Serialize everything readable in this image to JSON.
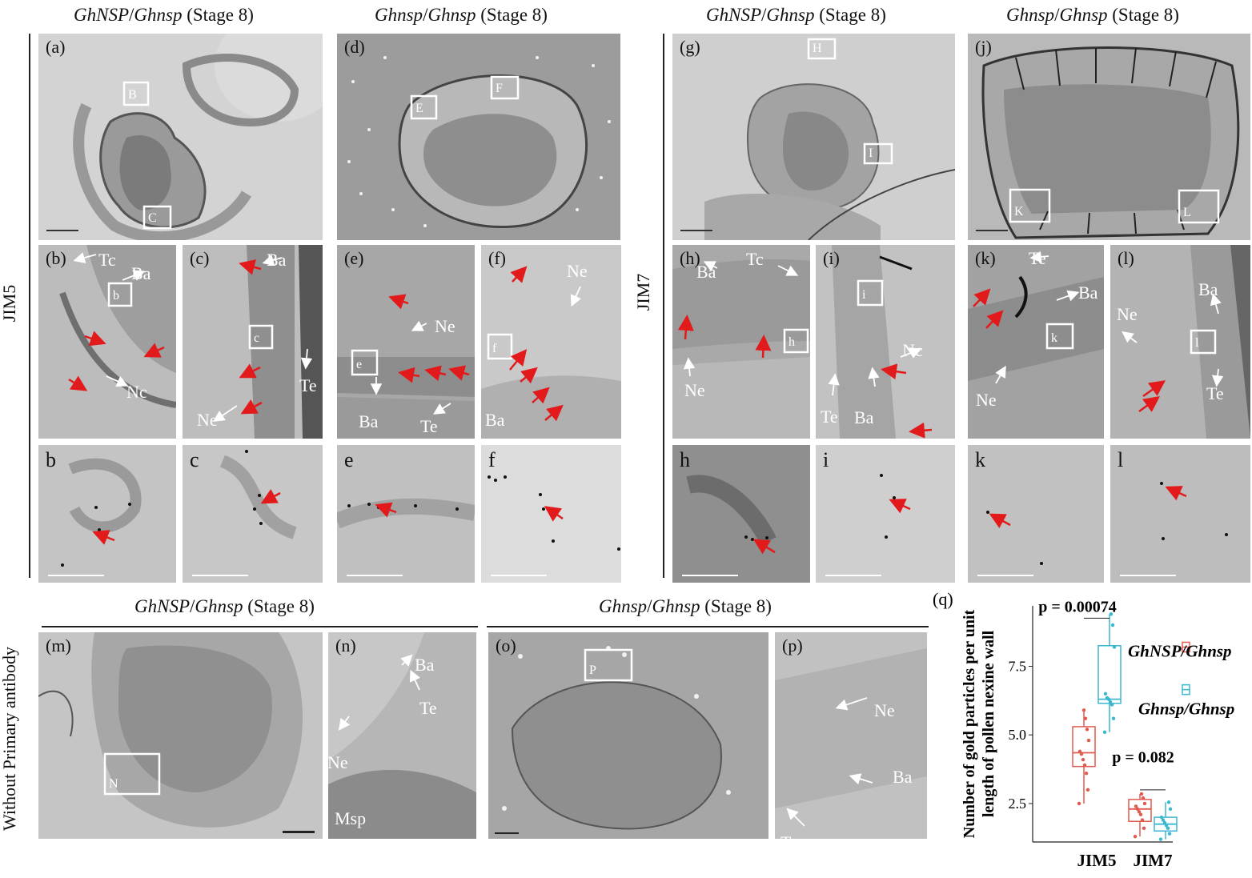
{
  "titles": {
    "a": {
      "g1": "GhNSP",
      "g2": "Ghnsp",
      "stage": " (Stage 8)"
    },
    "d": {
      "g1": "Ghnsp",
      "g2": "Ghnsp",
      "stage": " (Stage 8)"
    },
    "g": {
      "g1": "GhNSP",
      "g2": "Ghnsp",
      "stage": " (Stage 8)"
    },
    "j": {
      "g1": "Ghnsp",
      "g2": "Ghnsp",
      "stage": " (Stage 8)"
    },
    "m": {
      "g1": "GhNSP",
      "g2": "Ghnsp",
      "stage": " (Stage 8)"
    },
    "o": {
      "g1": "Ghnsp",
      "g2": "Ghnsp",
      "stage": " (Stage 8)"
    }
  },
  "side_labels": {
    "jim5": "JIM5",
    "jim7": "JIM7",
    "no_primary": "Without Primary antibody"
  },
  "panels": {
    "a": "(a)",
    "b": "(b)",
    "c": "(c)",
    "d": "(d)",
    "e": "(e)",
    "f": "(f)",
    "g": "(g)",
    "h": "(h)",
    "i": "(i)",
    "j": "(j)",
    "k": "(k)",
    "l": "(l)",
    "m": "(m)",
    "n": "(n)",
    "o": "(o)",
    "p": "(p)",
    "q": "(q)",
    "b2": "b",
    "c2": "c",
    "e2": "e",
    "f2": "f",
    "h2": "h",
    "i2": "i",
    "k2": "k",
    "l2": "l"
  },
  "box_labels": {
    "B": "B",
    "C": "C",
    "E": "E",
    "F": "F",
    "H": "H",
    "I": "I",
    "K": "K",
    "L": "L",
    "N": "N",
    "P": "P",
    "b": "b",
    "c": "c",
    "e": "e",
    "f": "f",
    "h": "h",
    "i": "i",
    "k": "k",
    "l": "l"
  },
  "annotations": {
    "Te": "Te",
    "Tc": "Tc",
    "Ba": "Ba",
    "Nc": "Nc",
    "Ne": "Ne",
    "Msp": "Msp"
  },
  "colors": {
    "arrow_red": "#e31a1c",
    "jim_red": "#e05a4f",
    "jim_blue": "#3bb7d0"
  },
  "chart_data": {
    "type": "box",
    "panel_label": "(q)",
    "ylabel": "Number of gold particles per unit length of pollen nexine wall",
    "categories": [
      "JIM5",
      "JIM7"
    ],
    "ylim": [
      1.1,
      9.7
    ],
    "yticks": [
      2.5,
      5.0,
      7.5
    ],
    "ytick_labels": [
      "2.5",
      "5.0",
      "7.5"
    ],
    "series": [
      {
        "name": "GhNSP/Ghnsp",
        "color": "#e05a4f",
        "boxes": [
          {
            "min": 2.5,
            "q1": 3.85,
            "median": 4.35,
            "q3": 5.3,
            "max": 5.9
          },
          {
            "min": 1.3,
            "q1": 1.85,
            "median": 2.3,
            "q3": 2.65,
            "max": 2.85
          }
        ],
        "points": [
          [
            2.5,
            3.0,
            3.6,
            3.9,
            4.1,
            4.3,
            4.4,
            4.8,
            5.2,
            5.6,
            5.9
          ],
          [
            1.3,
            1.6,
            1.9,
            2.1,
            2.2,
            2.3,
            2.4,
            2.5,
            2.7,
            2.85
          ]
        ]
      },
      {
        "name": "Ghnsp/Ghnsp",
        "color": "#3bb7d0",
        "boxes": [
          {
            "min": 5.1,
            "q1": 6.15,
            "median": 6.3,
            "q3": 8.25,
            "max": 9.4
          },
          {
            "min": 1.2,
            "q1": 1.5,
            "median": 1.75,
            "q3": 2.0,
            "max": 2.55
          }
        ],
        "points": [
          [
            5.1,
            5.6,
            6.1,
            6.2,
            6.3,
            6.35,
            6.5,
            8.2,
            9.0,
            9.4
          ],
          [
            1.2,
            1.4,
            1.6,
            1.7,
            1.8,
            1.9,
            2.0,
            2.3,
            2.55
          ]
        ]
      }
    ],
    "annotations": [
      {
        "text": "p = 0.00074",
        "category": "JIM5"
      },
      {
        "text": "p = 0.082",
        "category": "JIM7"
      }
    ],
    "legend_position": "right"
  }
}
